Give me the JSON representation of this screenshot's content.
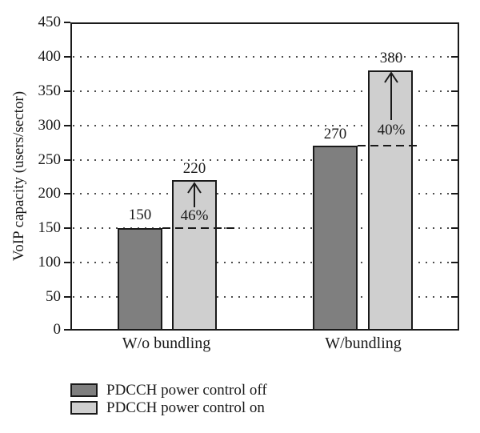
{
  "chart_data": {
    "type": "bar",
    "title": "",
    "ylabel": "VoIP capacity (users/sector)",
    "xlabel": "",
    "ylim": [
      0,
      450
    ],
    "ytick_step": 50,
    "yticks": [
      450,
      400,
      350,
      300,
      250,
      200,
      150,
      100,
      50,
      0
    ],
    "categories": [
      "W/o bundling",
      "W/bundling"
    ],
    "series": [
      {
        "name": "PDCCH power control off",
        "color": "#7f7f7f",
        "values": [
          150,
          270
        ]
      },
      {
        "name": "PDCCH power control on",
        "color": "#cfcfcf",
        "values": [
          220,
          380
        ]
      }
    ],
    "annotations": [
      {
        "category": "W/o bundling",
        "gain_label": "46%",
        "from": 150,
        "to": 220
      },
      {
        "category": "W/bundling",
        "gain_label": "40%",
        "from": 270,
        "to": 380
      }
    ],
    "grid": "dotted-horizontal",
    "legend_position": "bottom-left",
    "colors": {
      "axis": "#1a1a1a",
      "grid_dot": "#4d4d4d",
      "background": "#ffffff",
      "text": "#1a1a1a"
    }
  }
}
